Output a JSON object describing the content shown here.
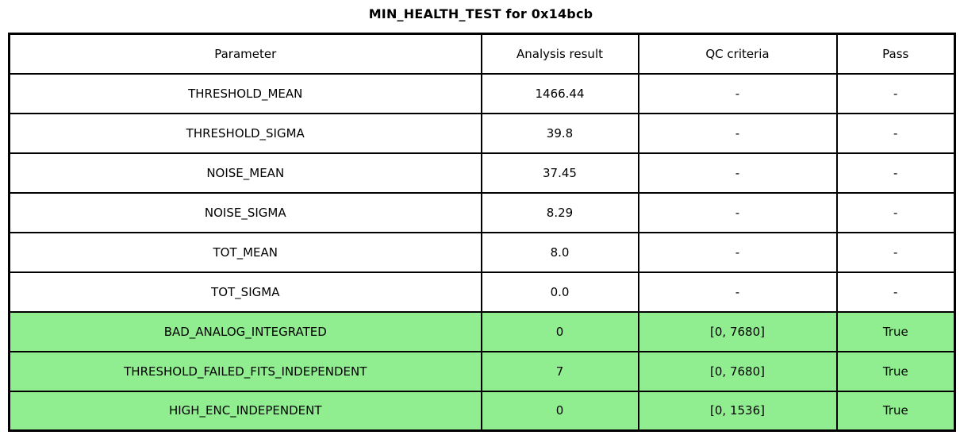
{
  "title": "MIN_HEALTH_TEST for 0x14bcb",
  "colors": {
    "highlight_green": "#90EE90",
    "row_default": "#FFFFFF",
    "border": "#000000",
    "text": "#000000"
  },
  "chart_data": {
    "type": "table",
    "title": "MIN_HEALTH_TEST for 0x14bcb",
    "columns": [
      "Parameter",
      "Analysis result",
      "QC criteria",
      "Pass"
    ],
    "rows": [
      [
        "THRESHOLD_MEAN",
        "1466.44",
        "-",
        "-"
      ],
      [
        "THRESHOLD_SIGMA",
        "39.8",
        "-",
        "-"
      ],
      [
        "NOISE_MEAN",
        "37.45",
        "-",
        "-"
      ],
      [
        "NOISE_SIGMA",
        "8.29",
        "-",
        "-"
      ],
      [
        "TOT_MEAN",
        "8.0",
        "-",
        "-"
      ],
      [
        "TOT_SIGMA",
        "0.0",
        "-",
        "-"
      ],
      [
        "BAD_ANALOG_INTEGRATED",
        "0",
        "[0, 7680]",
        "True"
      ],
      [
        "THRESHOLD_FAILED_FITS_INDEPENDENT",
        "7",
        "[0, 7680]",
        "True"
      ],
      [
        "HIGH_ENC_INDEPENDENT",
        "0",
        "[0, 1536]",
        "True"
      ]
    ],
    "highlighted_row_indices": [
      6,
      7,
      8
    ],
    "legend_position": "none",
    "grid": true
  }
}
